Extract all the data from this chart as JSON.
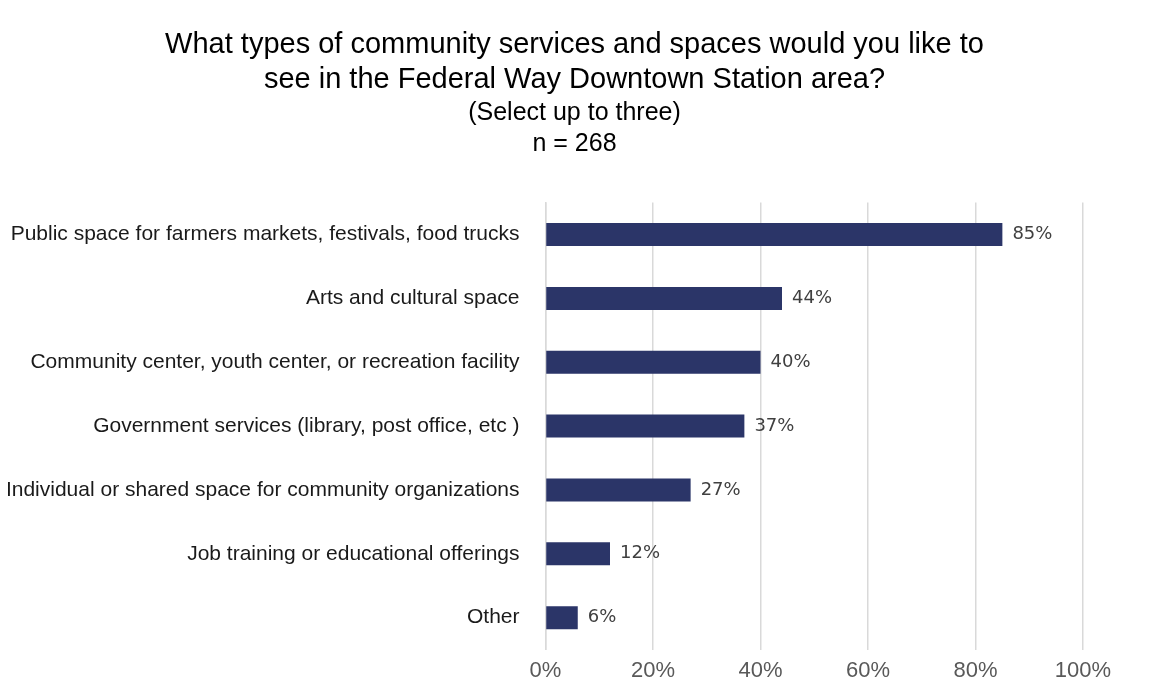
{
  "chart_data": {
    "type": "bar",
    "orientation": "horizontal",
    "title": "What types of community services and spaces would you like to see in the Federal Way Downtown Station area?",
    "subtitle": "(Select up to three)",
    "annotations": [
      "n = 268"
    ],
    "categories": [
      "Public space for farmers markets, festivals, food trucks",
      "Arts and cultural space",
      "Community center, youth center, or recreation facility",
      "Government services (library, post office, etc )",
      "Individual or shared space for community organizations",
      "Job training or educational offerings",
      "Other"
    ],
    "values": [
      85,
      44,
      40,
      37,
      27,
      12,
      6
    ],
    "value_labels": [
      "85%",
      "44%",
      "40%",
      "37%",
      "27%",
      "12%",
      "6%"
    ],
    "color": "#2b3568",
    "xlim": [
      0,
      100
    ],
    "xticks": [
      {
        "value": 0,
        "label": "0%"
      },
      {
        "value": 20,
        "label": "20%"
      },
      {
        "value": 40,
        "label": "40%"
      },
      {
        "value": 60,
        "label": "60%"
      },
      {
        "value": 80,
        "label": "80%"
      },
      {
        "value": 100,
        "label": "100%"
      }
    ],
    "grid": "x",
    "legend": false
  }
}
